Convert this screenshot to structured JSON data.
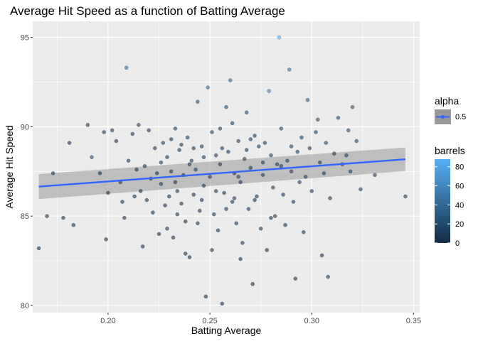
{
  "chart_data": {
    "type": "scatter",
    "title": "Average Hit Speed as a function of Batting Average",
    "xlabel": "Batting Average",
    "ylabel": "Average Hit Speed",
    "xlim": [
      0.163,
      0.353
    ],
    "ylim": [
      79.6,
      95.9
    ],
    "x_ticks": [
      0.2,
      0.25,
      0.3,
      0.35
    ],
    "x_tick_labels": [
      "0.20",
      "0.25",
      "0.30",
      "0.35"
    ],
    "y_ticks": [
      80,
      85,
      90,
      95
    ],
    "y_tick_labels": [
      "80",
      "85",
      "90",
      "95"
    ],
    "grid": true,
    "panel_background": "#ebebeb",
    "points": [
      [
        0.166,
        83.2,
        3
      ],
      [
        0.17,
        85.0,
        3
      ],
      [
        0.173,
        87.4,
        5
      ],
      [
        0.178,
        84.9,
        3
      ],
      [
        0.181,
        89.1,
        4
      ],
      [
        0.183,
        84.5,
        3
      ],
      [
        0.19,
        90.1,
        8
      ],
      [
        0.192,
        88.3,
        18
      ],
      [
        0.196,
        87.4,
        6
      ],
      [
        0.198,
        89.7,
        5
      ],
      [
        0.199,
        83.7,
        3
      ],
      [
        0.2,
        86.3,
        5
      ],
      [
        0.202,
        89.8,
        10
      ],
      [
        0.204,
        89.2,
        5
      ],
      [
        0.206,
        86.9,
        6
      ],
      [
        0.207,
        85.8,
        4
      ],
      [
        0.208,
        84.9,
        3
      ],
      [
        0.209,
        93.3,
        40
      ],
      [
        0.21,
        88.1,
        8
      ],
      [
        0.212,
        89.6,
        10
      ],
      [
        0.213,
        86.1,
        4
      ],
      [
        0.214,
        87.6,
        6
      ],
      [
        0.215,
        90.1,
        12
      ],
      [
        0.216,
        86.4,
        5
      ],
      [
        0.217,
        83.3,
        3
      ],
      [
        0.218,
        87.8,
        8
      ],
      [
        0.22,
        89.8,
        12
      ],
      [
        0.221,
        87.1,
        6
      ],
      [
        0.222,
        85.2,
        4
      ],
      [
        0.223,
        88.8,
        10
      ],
      [
        0.224,
        87.4,
        6
      ],
      [
        0.225,
        84.0,
        3
      ],
      [
        0.226,
        86.8,
        6
      ],
      [
        0.227,
        89.1,
        10
      ],
      [
        0.228,
        85.6,
        4
      ],
      [
        0.229,
        88.3,
        9
      ],
      [
        0.23,
        86.1,
        6
      ],
      [
        0.231,
        87.5,
        7
      ],
      [
        0.232,
        83.8,
        3
      ],
      [
        0.233,
        89.9,
        12
      ],
      [
        0.234,
        86.4,
        6
      ],
      [
        0.235,
        88.7,
        10
      ],
      [
        0.236,
        85.7,
        5
      ],
      [
        0.237,
        87.3,
        7
      ],
      [
        0.238,
        84.7,
        4
      ],
      [
        0.239,
        89.4,
        12
      ],
      [
        0.24,
        82.7,
        3
      ],
      [
        0.241,
        88.1,
        9
      ],
      [
        0.242,
        86.2,
        6
      ],
      [
        0.243,
        87.6,
        8
      ],
      [
        0.244,
        91.4,
        25
      ],
      [
        0.245,
        85.3,
        5
      ],
      [
        0.246,
        88.9,
        11
      ],
      [
        0.247,
        86.7,
        7
      ],
      [
        0.248,
        80.5,
        2
      ],
      [
        0.249,
        92.2,
        40
      ],
      [
        0.25,
        87.2,
        8
      ],
      [
        0.251,
        89.7,
        12
      ],
      [
        0.252,
        85.1,
        5
      ],
      [
        0.253,
        88.4,
        10
      ],
      [
        0.254,
        84.2,
        4
      ],
      [
        0.255,
        87.9,
        9
      ],
      [
        0.256,
        80.1,
        2
      ],
      [
        0.257,
        86.3,
        7
      ],
      [
        0.258,
        91.1,
        20
      ],
      [
        0.259,
        88.6,
        11
      ],
      [
        0.26,
        92.6,
        35
      ],
      [
        0.261,
        85.8,
        6
      ],
      [
        0.262,
        87.4,
        8
      ],
      [
        0.263,
        84.6,
        5
      ],
      [
        0.264,
        89.2,
        12
      ],
      [
        0.265,
        86.9,
        8
      ],
      [
        0.266,
        83.5,
        4
      ],
      [
        0.267,
        88.2,
        10
      ],
      [
        0.268,
        90.8,
        18
      ],
      [
        0.269,
        85.4,
        6
      ],
      [
        0.27,
        87.7,
        9
      ],
      [
        0.271,
        81.2,
        3
      ],
      [
        0.272,
        89.5,
        14
      ],
      [
        0.273,
        86.1,
        7
      ],
      [
        0.274,
        88.9,
        12
      ],
      [
        0.275,
        84.3,
        5
      ],
      [
        0.276,
        87.3,
        8
      ],
      [
        0.277,
        89.1,
        13
      ],
      [
        0.278,
        83.1,
        4
      ],
      [
        0.279,
        92.0,
        55
      ],
      [
        0.28,
        88.4,
        11
      ],
      [
        0.281,
        86.6,
        8
      ],
      [
        0.282,
        85.0,
        6
      ],
      [
        0.283,
        87.9,
        10
      ],
      [
        0.284,
        95.0,
        85
      ],
      [
        0.285,
        89.9,
        15
      ],
      [
        0.286,
        86.2,
        8
      ],
      [
        0.287,
        84.5,
        5
      ],
      [
        0.288,
        88.1,
        11
      ],
      [
        0.289,
        93.2,
        45
      ],
      [
        0.29,
        87.5,
        9
      ],
      [
        0.291,
        85.8,
        7
      ],
      [
        0.292,
        81.5,
        3
      ],
      [
        0.293,
        88.6,
        12
      ],
      [
        0.294,
        86.9,
        9
      ],
      [
        0.295,
        89.4,
        14
      ],
      [
        0.296,
        84.1,
        5
      ],
      [
        0.297,
        87.2,
        9
      ],
      [
        0.298,
        91.5,
        30
      ],
      [
        0.299,
        88.8,
        12
      ],
      [
        0.3,
        86.4,
        8
      ],
      [
        0.302,
        89.7,
        15
      ],
      [
        0.303,
        90.4,
        20
      ],
      [
        0.304,
        88.0,
        11
      ],
      [
        0.305,
        82.8,
        4
      ],
      [
        0.306,
        87.4,
        10
      ],
      [
        0.307,
        89.1,
        13
      ],
      [
        0.308,
        81.6,
        3
      ],
      [
        0.309,
        86.0,
        8
      ],
      [
        0.311,
        88.5,
        12
      ],
      [
        0.313,
        90.5,
        20
      ],
      [
        0.315,
        87.9,
        11
      ],
      [
        0.317,
        88.4,
        12
      ],
      [
        0.318,
        89.8,
        18
      ],
      [
        0.319,
        87.5,
        10
      ],
      [
        0.32,
        91.1,
        25
      ],
      [
        0.322,
        89.2,
        15
      ],
      [
        0.324,
        86.5,
        8
      ],
      [
        0.331,
        87.3,
        10
      ],
      [
        0.346,
        86.1,
        8
      ],
      [
        0.255,
        89.9,
        12
      ],
      [
        0.247,
        88.3,
        10
      ],
      [
        0.262,
        86.0,
        7
      ],
      [
        0.268,
        88.7,
        11
      ],
      [
        0.24,
        87.9,
        9
      ],
      [
        0.233,
        86.9,
        8
      ],
      [
        0.276,
        88.0,
        10
      ],
      [
        0.258,
        85.4,
        6
      ],
      [
        0.244,
        84.6,
        5
      ],
      [
        0.251,
        83.1,
        4
      ],
      [
        0.265,
        82.6,
        3
      ],
      [
        0.272,
        85.9,
        6
      ],
      [
        0.28,
        84.9,
        5
      ],
      [
        0.256,
        88.8,
        11
      ],
      [
        0.236,
        89.0,
        10
      ],
      [
        0.226,
        88.0,
        8
      ],
      [
        0.219,
        85.9,
        5
      ],
      [
        0.229,
        84.3,
        4
      ],
      [
        0.238,
        82.9,
        3
      ],
      [
        0.285,
        87.8,
        10
      ],
      [
        0.29,
        88.9,
        12
      ],
      [
        0.261,
        90.2,
        16
      ],
      [
        0.27,
        89.3,
        13
      ],
      [
        0.253,
        86.4,
        7
      ],
      [
        0.246,
        85.9,
        6
      ],
      [
        0.242,
        88.8,
        10
      ],
      [
        0.234,
        85.1,
        5
      ],
      [
        0.231,
        89.3,
        11
      ],
      [
        0.264,
        87.2,
        8
      ]
    ],
    "trend": {
      "method": "linear",
      "x": [
        0.166,
        0.346
      ],
      "y": [
        86.65,
        88.18
      ],
      "se_lower": [
        85.95,
        87.52
      ],
      "se_upper": [
        87.35,
        88.84
      ],
      "line_color": "#3366ff",
      "band_color": "#999999"
    },
    "legend": {
      "position": "right",
      "alpha_title": "alpha",
      "alpha_label": "0.5",
      "color_title": "barrels",
      "color_ticks": [
        0,
        20,
        40,
        60,
        80
      ],
      "color_tick_labels": [
        "0",
        "20",
        "40",
        "60",
        "80"
      ],
      "color_range": [
        0,
        88
      ],
      "color_low": "#132b43",
      "color_high": "#56b1f7"
    }
  }
}
